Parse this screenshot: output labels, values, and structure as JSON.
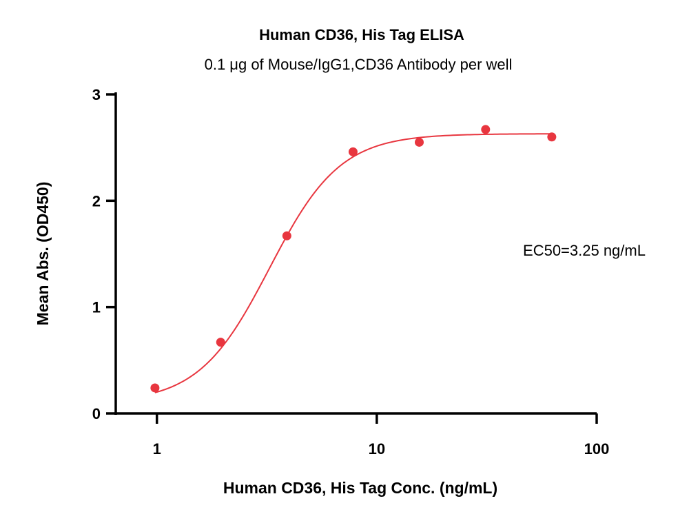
{
  "chart_data": {
    "type": "scatter",
    "title": "Human CD36, His Tag ELISA",
    "subtitle": "0.1 μg of Mouse/IgG1,CD36 Antibody per well",
    "xlabel": "Human CD36, His Tag Conc. (ng/mL)",
    "ylabel": "Mean Abs. (OD450)",
    "x_scale": "log",
    "xlim": [
      0.65,
      100
    ],
    "ylim": [
      0,
      3
    ],
    "x_ticks": [
      1,
      10,
      100
    ],
    "x_tick_labels": [
      "1",
      "10",
      "100"
    ],
    "y_ticks": [
      0,
      1,
      2,
      3
    ],
    "y_tick_labels": [
      "0",
      "1",
      "2",
      "3"
    ],
    "grid": false,
    "color": "#e8363f",
    "series": [
      {
        "x": [
          0.98,
          1.95,
          3.9,
          7.8,
          15.6,
          31.25,
          62.5
        ],
        "y": [
          0.24,
          0.67,
          1.67,
          2.46,
          2.55,
          2.67,
          2.6
        ]
      }
    ],
    "fit_curve": {
      "model": "4PL",
      "bottom": 0.1,
      "top": 2.63,
      "ec50": 3.25,
      "hill": 2.7,
      "x_range": [
        0.98,
        62.5
      ]
    },
    "annotation": "EC50=3.25 ng/mL"
  }
}
